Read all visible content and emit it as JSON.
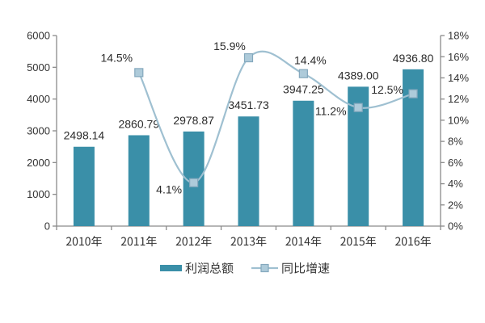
{
  "chart_data": {
    "type": "combo_bar_line",
    "categories": [
      "2010年",
      "2011年",
      "2012年",
      "2013年",
      "2014年",
      "2015年",
      "2016年"
    ],
    "series": [
      {
        "name": "利润总额",
        "type": "bar",
        "axis": "left",
        "values": [
          2498.14,
          2860.79,
          2978.87,
          3451.73,
          3947.25,
          4389.0,
          4936.8
        ],
        "labels": [
          "2498.14",
          "2860.79",
          "2978.87",
          "3451.73",
          "3947.25",
          "4389.00",
          "4936.80"
        ],
        "color": "#3a8fa8"
      },
      {
        "name": "同比增速",
        "type": "line",
        "axis": "right",
        "values": [
          null,
          14.5,
          4.1,
          15.9,
          14.4,
          11.2,
          12.5
        ],
        "labels": [
          "",
          "14.5%",
          "4.1%",
          "15.9%",
          "14.4%",
          "11.2%",
          "12.5%"
        ],
        "color": "#9fc0d1",
        "marker_fill": "#aecbda",
        "marker_stroke": "#84a8bd",
        "smooth": true,
        "label_offsets": [
          null,
          [
            -27.5,
            -18.5
          ],
          [
            -30.5,
            8.6
          ],
          [
            -23.5,
            -14.4
          ],
          [
            8.5,
            -16.6
          ],
          [
            -34,
            4.6
          ],
          [
            -32,
            -5
          ]
        ]
      }
    ],
    "left_axis": {
      "min": 0,
      "max": 6000,
      "step": 1000,
      "tick_labels": [
        "0",
        "1000",
        "2000",
        "3000",
        "4000",
        "5000",
        "6000"
      ]
    },
    "right_axis": {
      "min": 0,
      "max": 18,
      "step": 2,
      "tick_labels": [
        "0%",
        "2%",
        "4%",
        "6%",
        "8%",
        "10%",
        "12%",
        "14%",
        "16%",
        "18%"
      ]
    },
    "legend": {
      "position": "bottom",
      "items": [
        "利润总额",
        "同比增速"
      ]
    },
    "grid": false,
    "background": "#ffffff",
    "text_color": "#333333",
    "axis_color": "#8a8a8a"
  }
}
